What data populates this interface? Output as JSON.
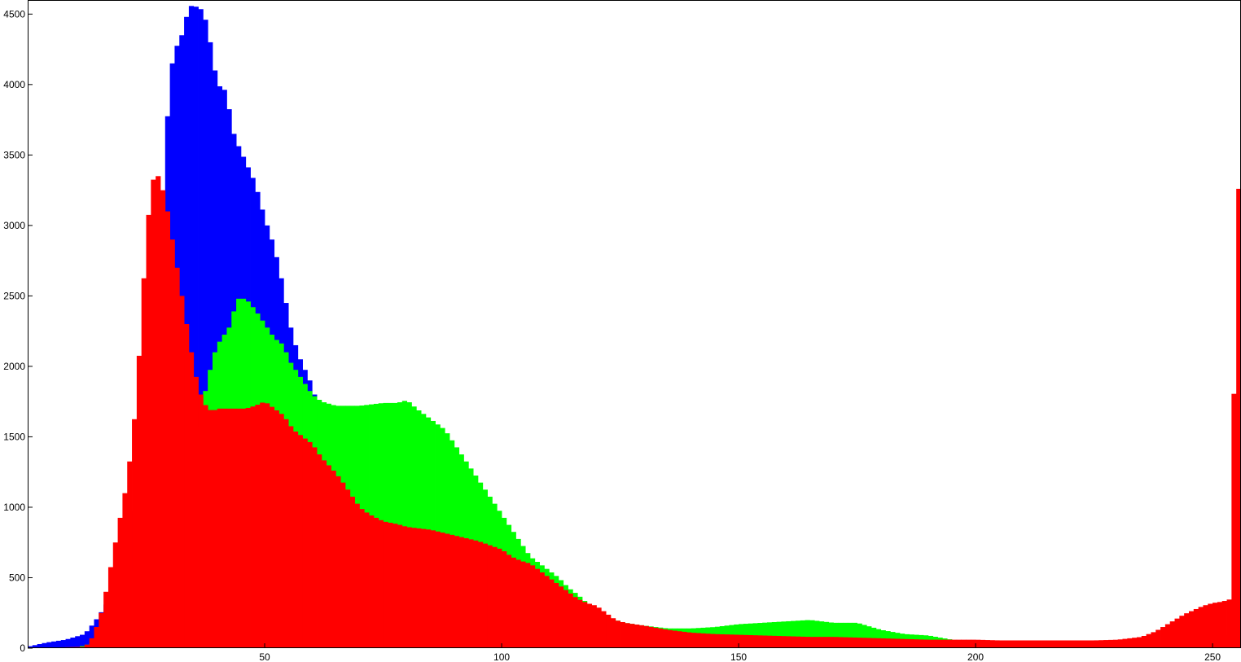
{
  "chart_data": {
    "type": "bar",
    "title": "",
    "xlabel": "",
    "ylabel": "",
    "xlim": [
      0,
      256
    ],
    "ylim": [
      0,
      4600
    ],
    "grid": false,
    "legend": "none",
    "xticks": [
      50,
      100,
      150,
      200,
      250
    ],
    "yticks": [
      0,
      500,
      1000,
      1500,
      2000,
      2500,
      3000,
      3500,
      4000,
      4500
    ],
    "draw_order": [
      "Blue",
      "Green",
      "Red"
    ],
    "series": [
      {
        "name": "Blue",
        "color": "#0000ff",
        "bins": [
          0,
          256
        ],
        "points": [
          [
            0,
            10
          ],
          [
            4,
            40
          ],
          [
            8,
            60
          ],
          [
            12,
            100
          ],
          [
            14,
            180
          ],
          [
            16,
            280
          ],
          [
            18,
            400
          ],
          [
            20,
            600
          ],
          [
            22,
            900
          ],
          [
            24,
            1200
          ],
          [
            26,
            1550
          ],
          [
            28,
            2000
          ],
          [
            29,
            3500
          ],
          [
            30,
            4050
          ],
          [
            31,
            4250
          ],
          [
            32,
            4300
          ],
          [
            33,
            4400
          ],
          [
            34,
            4560
          ],
          [
            36,
            4550
          ],
          [
            37,
            4520
          ],
          [
            38,
            4400
          ],
          [
            39,
            4200
          ],
          [
            40,
            4000
          ],
          [
            42,
            3950
          ],
          [
            43,
            3700
          ],
          [
            44,
            3600
          ],
          [
            46,
            3450
          ],
          [
            48,
            3300
          ],
          [
            50,
            3050
          ],
          [
            52,
            2850
          ],
          [
            54,
            2550
          ],
          [
            55,
            2350
          ],
          [
            56,
            2200
          ],
          [
            57,
            2100
          ],
          [
            58,
            2000
          ],
          [
            59,
            1950
          ],
          [
            60,
            1850
          ],
          [
            61,
            1750
          ],
          [
            62,
            1650
          ],
          [
            64,
            1500
          ],
          [
            66,
            1350
          ],
          [
            68,
            1250
          ],
          [
            70,
            1150
          ],
          [
            72,
            1050
          ],
          [
            75,
            920
          ],
          [
            78,
            780
          ],
          [
            80,
            720
          ],
          [
            85,
            600
          ],
          [
            90,
            540
          ],
          [
            95,
            480
          ],
          [
            100,
            430
          ],
          [
            105,
            380
          ],
          [
            110,
            330
          ],
          [
            115,
            270
          ],
          [
            120,
            220
          ],
          [
            125,
            170
          ],
          [
            130,
            130
          ],
          [
            135,
            100
          ],
          [
            140,
            85
          ],
          [
            150,
            60
          ],
          [
            160,
            45
          ],
          [
            170,
            35
          ],
          [
            180,
            25
          ],
          [
            200,
            15
          ],
          [
            220,
            10
          ],
          [
            240,
            10
          ],
          [
            256,
            10
          ]
        ]
      },
      {
        "name": "Green",
        "color": "#00ff00",
        "bins": [
          0,
          256
        ],
        "points": [
          [
            0,
            0
          ],
          [
            10,
            0
          ],
          [
            14,
            40
          ],
          [
            18,
            150
          ],
          [
            20,
            300
          ],
          [
            22,
            500
          ],
          [
            24,
            700
          ],
          [
            26,
            900
          ],
          [
            28,
            1000
          ],
          [
            30,
            1150
          ],
          [
            32,
            1300
          ],
          [
            34,
            1450
          ],
          [
            36,
            1600
          ],
          [
            37,
            1750
          ],
          [
            38,
            1900
          ],
          [
            39,
            2050
          ],
          [
            40,
            2150
          ],
          [
            42,
            2250
          ],
          [
            43,
            2300
          ],
          [
            44,
            2480
          ],
          [
            46,
            2480
          ],
          [
            48,
            2400
          ],
          [
            50,
            2300
          ],
          [
            52,
            2200
          ],
          [
            54,
            2150
          ],
          [
            55,
            2050
          ],
          [
            56,
            2000
          ],
          [
            58,
            1900
          ],
          [
            60,
            1800
          ],
          [
            62,
            1750
          ],
          [
            65,
            1720
          ],
          [
            70,
            1720
          ],
          [
            75,
            1740
          ],
          [
            78,
            1740
          ],
          [
            80,
            1760
          ],
          [
            82,
            1700
          ],
          [
            84,
            1650
          ],
          [
            86,
            1600
          ],
          [
            88,
            1550
          ],
          [
            90,
            1450
          ],
          [
            92,
            1350
          ],
          [
            94,
            1250
          ],
          [
            96,
            1150
          ],
          [
            98,
            1050
          ],
          [
            100,
            950
          ],
          [
            102,
            850
          ],
          [
            104,
            750
          ],
          [
            106,
            650
          ],
          [
            108,
            600
          ],
          [
            110,
            550
          ],
          [
            112,
            500
          ],
          [
            114,
            430
          ],
          [
            116,
            380
          ],
          [
            118,
            320
          ],
          [
            120,
            270
          ],
          [
            122,
            230
          ],
          [
            124,
            200
          ],
          [
            126,
            180
          ],
          [
            130,
            160
          ],
          [
            135,
            140
          ],
          [
            140,
            140
          ],
          [
            145,
            150
          ],
          [
            150,
            170
          ],
          [
            155,
            180
          ],
          [
            160,
            190
          ],
          [
            165,
            200
          ],
          [
            170,
            180
          ],
          [
            175,
            180
          ],
          [
            180,
            130
          ],
          [
            185,
            100
          ],
          [
            190,
            90
          ],
          [
            195,
            60
          ],
          [
            200,
            40
          ],
          [
            210,
            30
          ],
          [
            220,
            30
          ],
          [
            230,
            30
          ],
          [
            240,
            30
          ],
          [
            250,
            50
          ],
          [
            254,
            100
          ],
          [
            256,
            120
          ]
        ]
      },
      {
        "name": "Red",
        "color": "#ff0000",
        "bins": [
          0,
          256
        ],
        "points": [
          [
            0,
            0
          ],
          [
            12,
            10
          ],
          [
            13,
            40
          ],
          [
            14,
            100
          ],
          [
            15,
            200
          ],
          [
            16,
            300
          ],
          [
            17,
            500
          ],
          [
            18,
            650
          ],
          [
            19,
            850
          ],
          [
            20,
            1000
          ],
          [
            21,
            1200
          ],
          [
            22,
            1450
          ],
          [
            23,
            1800
          ],
          [
            24,
            2350
          ],
          [
            25,
            2900
          ],
          [
            26,
            3250
          ],
          [
            27,
            3400
          ],
          [
            28,
            3300
          ],
          [
            29,
            3200
          ],
          [
            30,
            3000
          ],
          [
            31,
            2800
          ],
          [
            32,
            2600
          ],
          [
            33,
            2400
          ],
          [
            34,
            2200
          ],
          [
            35,
            2000
          ],
          [
            36,
            1850
          ],
          [
            37,
            1750
          ],
          [
            38,
            1700
          ],
          [
            39,
            1680
          ],
          [
            40,
            1700
          ],
          [
            42,
            1700
          ],
          [
            44,
            1700
          ],
          [
            46,
            1700
          ],
          [
            48,
            1720
          ],
          [
            50,
            1750
          ],
          [
            52,
            1700
          ],
          [
            54,
            1650
          ],
          [
            56,
            1550
          ],
          [
            58,
            1500
          ],
          [
            60,
            1450
          ],
          [
            62,
            1350
          ],
          [
            64,
            1280
          ],
          [
            66,
            1200
          ],
          [
            68,
            1100
          ],
          [
            70,
            1000
          ],
          [
            72,
            950
          ],
          [
            75,
            900
          ],
          [
            78,
            880
          ],
          [
            80,
            860
          ],
          [
            85,
            840
          ],
          [
            90,
            800
          ],
          [
            95,
            760
          ],
          [
            100,
            700
          ],
          [
            102,
            650
          ],
          [
            104,
            620
          ],
          [
            106,
            600
          ],
          [
            108,
            550
          ],
          [
            110,
            500
          ],
          [
            112,
            450
          ],
          [
            114,
            400
          ],
          [
            116,
            350
          ],
          [
            118,
            320
          ],
          [
            120,
            300
          ],
          [
            122,
            250
          ],
          [
            124,
            200
          ],
          [
            126,
            180
          ],
          [
            130,
            160
          ],
          [
            135,
            130
          ],
          [
            140,
            110
          ],
          [
            145,
            100
          ],
          [
            150,
            95
          ],
          [
            155,
            90
          ],
          [
            160,
            85
          ],
          [
            165,
            80
          ],
          [
            170,
            80
          ],
          [
            175,
            75
          ],
          [
            180,
            70
          ],
          [
            185,
            65
          ],
          [
            190,
            60
          ],
          [
            195,
            60
          ],
          [
            200,
            60
          ],
          [
            205,
            55
          ],
          [
            210,
            55
          ],
          [
            215,
            55
          ],
          [
            220,
            55
          ],
          [
            225,
            55
          ],
          [
            230,
            60
          ],
          [
            235,
            80
          ],
          [
            238,
            120
          ],
          [
            240,
            160
          ],
          [
            242,
            200
          ],
          [
            244,
            240
          ],
          [
            246,
            270
          ],
          [
            248,
            300
          ],
          [
            250,
            320
          ],
          [
            252,
            330
          ],
          [
            254,
            350
          ],
          [
            255,
            3260
          ],
          [
            256,
            3260
          ]
        ]
      }
    ]
  }
}
